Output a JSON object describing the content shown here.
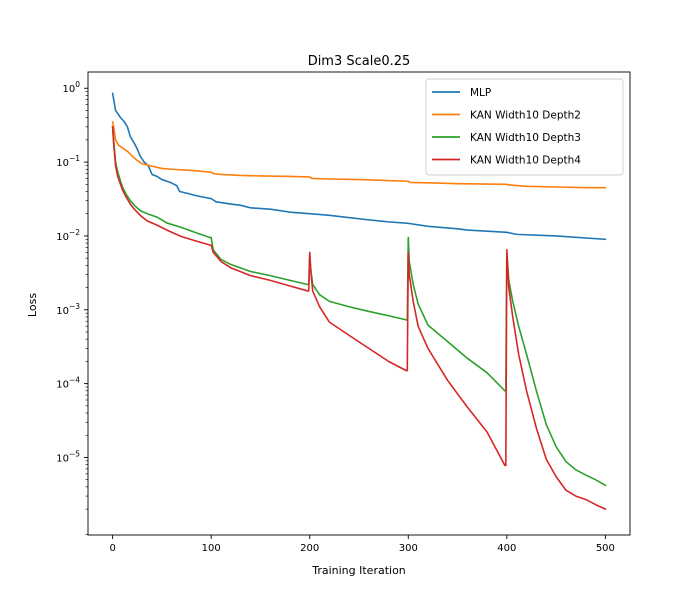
{
  "chart_data": {
    "type": "line",
    "title": "Dim3 Scale0.25",
    "xlabel": "Training Iteration",
    "ylabel": "Loss",
    "yscale": "log",
    "xlim": [
      -25,
      525
    ],
    "ylim_log10": [
      -6.05,
      0.22
    ],
    "xticks": [
      0,
      100,
      200,
      300,
      400,
      500
    ],
    "xtick_labels": [
      "0",
      "100",
      "200",
      "300",
      "400",
      "500"
    ],
    "yticks_log10": [
      0,
      -1,
      -2,
      -3,
      -4,
      -5
    ],
    "ytick_labels": [
      "10^0",
      "10^-1",
      "10^-2",
      "10^-3",
      "10^-4",
      "10^-5"
    ],
    "legend_position": "top-right",
    "series": [
      {
        "name": "MLP",
        "color": "#1f77b4",
        "points": [
          [
            0,
            0.85
          ],
          [
            3,
            0.5
          ],
          [
            8,
            0.4
          ],
          [
            12,
            0.35
          ],
          [
            15,
            0.3
          ],
          [
            18,
            0.22
          ],
          [
            22,
            0.18
          ],
          [
            25,
            0.15
          ],
          [
            28,
            0.12
          ],
          [
            32,
            0.1
          ],
          [
            36,
            0.09
          ],
          [
            40,
            0.068
          ],
          [
            45,
            0.064
          ],
          [
            50,
            0.058
          ],
          [
            55,
            0.055
          ],
          [
            60,
            0.052
          ],
          [
            65,
            0.048
          ],
          [
            68,
            0.04
          ],
          [
            75,
            0.038
          ],
          [
            85,
            0.035
          ],
          [
            100,
            0.032
          ],
          [
            105,
            0.029
          ],
          [
            120,
            0.027
          ],
          [
            130,
            0.026
          ],
          [
            140,
            0.024
          ],
          [
            160,
            0.023
          ],
          [
            180,
            0.021
          ],
          [
            200,
            0.02
          ],
          [
            220,
            0.019
          ],
          [
            235,
            0.018
          ],
          [
            260,
            0.0165
          ],
          [
            280,
            0.0155
          ],
          [
            300,
            0.0148
          ],
          [
            320,
            0.0135
          ],
          [
            350,
            0.0125
          ],
          [
            360,
            0.012
          ],
          [
            400,
            0.0112
          ],
          [
            410,
            0.0105
          ],
          [
            450,
            0.01
          ],
          [
            500,
            0.009
          ]
        ]
      },
      {
        "name": "KAN Width10 Depth2",
        "color": "#ff7f0e",
        "points": [
          [
            0,
            0.35
          ],
          [
            1,
            0.3
          ],
          [
            3,
            0.2
          ],
          [
            6,
            0.17
          ],
          [
            10,
            0.155
          ],
          [
            15,
            0.14
          ],
          [
            20,
            0.12
          ],
          [
            25,
            0.105
          ],
          [
            30,
            0.095
          ],
          [
            40,
            0.088
          ],
          [
            50,
            0.082
          ],
          [
            60,
            0.08
          ],
          [
            80,
            0.077
          ],
          [
            100,
            0.073
          ],
          [
            102,
            0.07
          ],
          [
            110,
            0.068
          ],
          [
            130,
            0.066
          ],
          [
            150,
            0.065
          ],
          [
            180,
            0.064
          ],
          [
            200,
            0.063
          ],
          [
            202,
            0.06
          ],
          [
            220,
            0.059
          ],
          [
            250,
            0.058
          ],
          [
            300,
            0.055
          ],
          [
            302,
            0.053
          ],
          [
            330,
            0.052
          ],
          [
            350,
            0.051
          ],
          [
            400,
            0.05
          ],
          [
            402,
            0.049
          ],
          [
            420,
            0.047
          ],
          [
            450,
            0.046
          ],
          [
            480,
            0.045
          ],
          [
            500,
            0.045
          ]
        ]
      },
      {
        "name": "KAN Width10 Depth3",
        "color": "#2ca02c",
        "points": [
          [
            0,
            0.3
          ],
          [
            1,
            0.2
          ],
          [
            3,
            0.1
          ],
          [
            5,
            0.075
          ],
          [
            8,
            0.055
          ],
          [
            10,
            0.046
          ],
          [
            14,
            0.036
          ],
          [
            18,
            0.03
          ],
          [
            22,
            0.026
          ],
          [
            28,
            0.022
          ],
          [
            35,
            0.02
          ],
          [
            45,
            0.018
          ],
          [
            55,
            0.015
          ],
          [
            70,
            0.013
          ],
          [
            85,
            0.011
          ],
          [
            99,
            0.0095
          ],
          [
            100,
            0.0095
          ],
          [
            102,
            0.0065
          ],
          [
            110,
            0.0048
          ],
          [
            120,
            0.0041
          ],
          [
            140,
            0.0033
          ],
          [
            160,
            0.0029
          ],
          [
            180,
            0.0025
          ],
          [
            198,
            0.0022
          ],
          [
            199,
            0.0022
          ],
          [
            200,
            0.0055
          ],
          [
            201,
            0.0036
          ],
          [
            203,
            0.0022
          ],
          [
            210,
            0.0016
          ],
          [
            220,
            0.0013
          ],
          [
            240,
            0.0011
          ],
          [
            260,
            0.00095
          ],
          [
            280,
            0.00083
          ],
          [
            298,
            0.00073
          ],
          [
            299,
            0.00072
          ],
          [
            300,
            0.0095
          ],
          [
            301,
            0.0045
          ],
          [
            305,
            0.0022
          ],
          [
            310,
            0.0012
          ],
          [
            320,
            0.00062
          ],
          [
            340,
            0.00037
          ],
          [
            360,
            0.00022
          ],
          [
            380,
            0.00014
          ],
          [
            398,
            8e-05
          ],
          [
            399,
            8e-05
          ],
          [
            400,
            0.006
          ],
          [
            402,
            0.0025
          ],
          [
            406,
            0.0013
          ],
          [
            412,
            0.0006
          ],
          [
            420,
            0.00025
          ],
          [
            430,
            8e-05
          ],
          [
            440,
            2.8e-05
          ],
          [
            450,
            1.4e-05
          ],
          [
            460,
            8.8e-06
          ],
          [
            470,
            6.8e-06
          ],
          [
            480,
            5.8e-06
          ],
          [
            490,
            5e-06
          ],
          [
            500,
            4.2e-06
          ]
        ]
      },
      {
        "name": "KAN Width10 Depth4",
        "color": "#d62728",
        "points": [
          [
            0,
            0.3
          ],
          [
            1,
            0.18
          ],
          [
            3,
            0.09
          ],
          [
            5,
            0.065
          ],
          [
            8,
            0.05
          ],
          [
            10,
            0.042
          ],
          [
            14,
            0.033
          ],
          [
            18,
            0.027
          ],
          [
            22,
            0.023
          ],
          [
            28,
            0.019
          ],
          [
            35,
            0.016
          ],
          [
            45,
            0.014
          ],
          [
            55,
            0.012
          ],
          [
            70,
            0.0098
          ],
          [
            85,
            0.0085
          ],
          [
            99,
            0.0075
          ],
          [
            100,
            0.0075
          ],
          [
            102,
            0.006
          ],
          [
            110,
            0.0045
          ],
          [
            120,
            0.0037
          ],
          [
            140,
            0.0029
          ],
          [
            160,
            0.0025
          ],
          [
            180,
            0.0021
          ],
          [
            198,
            0.0018
          ],
          [
            199,
            0.0018
          ],
          [
            200,
            0.006
          ],
          [
            201,
            0.0035
          ],
          [
            203,
            0.0018
          ],
          [
            210,
            0.0011
          ],
          [
            220,
            0.00068
          ],
          [
            240,
            0.00045
          ],
          [
            260,
            0.0003
          ],
          [
            280,
            0.0002
          ],
          [
            298,
            0.00015
          ],
          [
            299,
            0.00015
          ],
          [
            300,
            0.006
          ],
          [
            301,
            0.003
          ],
          [
            305,
            0.0013
          ],
          [
            310,
            0.0006
          ],
          [
            320,
            0.0003
          ],
          [
            340,
            0.00011
          ],
          [
            360,
            4.8e-05
          ],
          [
            380,
            2.2e-05
          ],
          [
            398,
            7.8e-06
          ],
          [
            399,
            7.8e-06
          ],
          [
            400,
            0.0065
          ],
          [
            402,
            0.002
          ],
          [
            406,
            0.0008
          ],
          [
            412,
            0.00025
          ],
          [
            420,
            8e-05
          ],
          [
            430,
            2.5e-05
          ],
          [
            440,
            9.5e-06
          ],
          [
            450,
            5.5e-06
          ],
          [
            460,
            3.6e-06
          ],
          [
            470,
            3e-06
          ],
          [
            480,
            2.7e-06
          ],
          [
            490,
            2.3e-06
          ],
          [
            500,
            2e-06
          ]
        ]
      }
    ]
  }
}
